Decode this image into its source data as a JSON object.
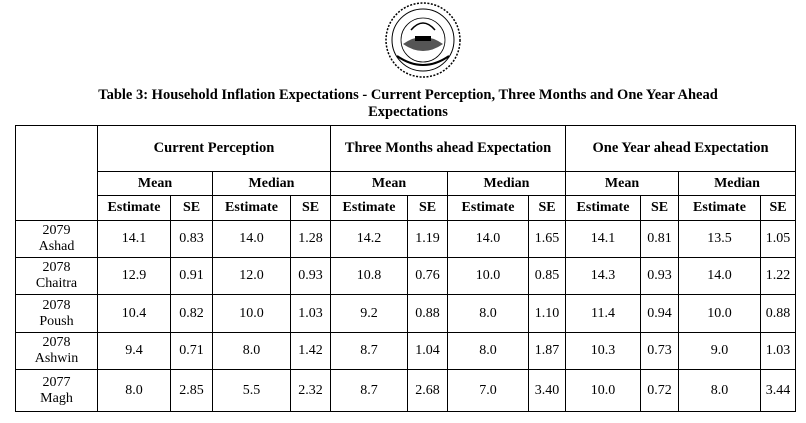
{
  "header": {
    "title": "Table 3: Household Inflation Expectations - Current Perception, Three Months and One Year Ahead Expectations"
  },
  "table": {
    "groups": [
      "Current Perception",
      "Three Months ahead Expectation",
      "One Year ahead Expectation"
    ],
    "subgroups": [
      "Mean",
      "Median"
    ],
    "columns": [
      "Estimate",
      "SE"
    ],
    "rows": [
      {
        "year": "2079",
        "month": "Ashad",
        "values": [
          "14.1",
          "0.83",
          "14.0",
          "1.28",
          "14.2",
          "1.19",
          "14.0",
          "1.65",
          "14.1",
          "0.81",
          "13.5",
          "1.05"
        ]
      },
      {
        "year": "2078",
        "month": "Chaitra",
        "values": [
          "12.9",
          "0.91",
          "12.0",
          "0.93",
          "10.8",
          "0.76",
          "10.0",
          "0.85",
          "14.3",
          "0.93",
          "14.0",
          "1.22"
        ]
      },
      {
        "year": "2078",
        "month": "Poush",
        "values": [
          "10.4",
          "0.82",
          "10.0",
          "1.03",
          "9.2",
          "0.88",
          "8.0",
          "1.10",
          "11.4",
          "0.94",
          "10.0",
          "0.88"
        ]
      },
      {
        "year": "2078",
        "month": "Ashwin",
        "values": [
          "9.4",
          "0.71",
          "8.0",
          "1.42",
          "8.7",
          "1.04",
          "8.0",
          "1.87",
          "10.3",
          "0.73",
          "9.0",
          "1.03"
        ]
      },
      {
        "year": "2077",
        "month": "Magh",
        "values": [
          "8.0",
          "2.85",
          "5.5",
          "2.32",
          "8.7",
          "2.68",
          "7.0",
          "3.40",
          "10.0",
          "0.72",
          "8.0",
          "3.44"
        ]
      }
    ]
  }
}
